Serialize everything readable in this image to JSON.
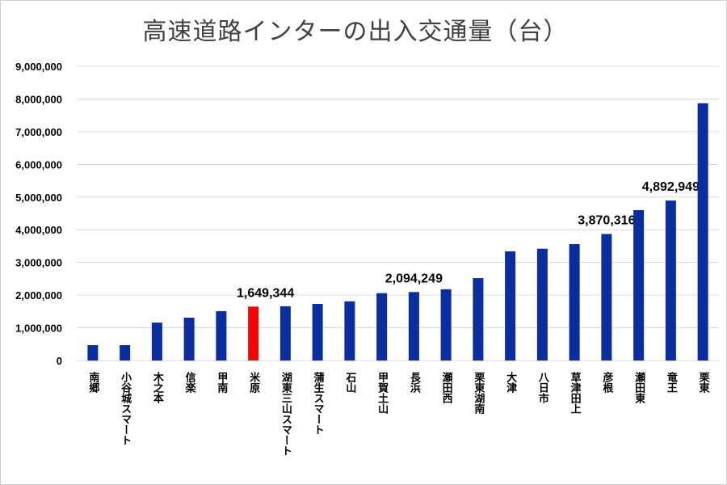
{
  "chart_data": {
    "type": "bar",
    "title": "高速道路インターの出入交通量（台）",
    "xlabel": "",
    "ylabel": "",
    "ylim": [
      0,
      9000000
    ],
    "yticks": [
      "0",
      "1,000,000",
      "2,000,000",
      "3,000,000",
      "4,000,000",
      "5,000,000",
      "6,000,000",
      "7,000,000",
      "8,000,000",
      "9,000,000"
    ],
    "grid": true,
    "legend": "none",
    "categories": [
      "南郷",
      "小谷城スマート",
      "木之本",
      "信楽",
      "甲南",
      "米原",
      "湖東三山スマート",
      "蒲生スマート",
      "石山",
      "甲賀土山",
      "長浜",
      "瀬田西",
      "栗東湖南",
      "大津",
      "八日市",
      "草津田上",
      "彦根",
      "瀬田東",
      "竜王",
      "栗東"
    ],
    "values": [
      470000,
      470000,
      1160000,
      1310000,
      1510000,
      1649344,
      1660000,
      1730000,
      1810000,
      2060000,
      2094249,
      2180000,
      2520000,
      3340000,
      3420000,
      3560000,
      3870316,
      4600000,
      4892949,
      7870000
    ],
    "data_labels": {
      "5": "1,649,344",
      "10": "2,094,249",
      "16": "3,870,316",
      "18": "4,892,949"
    },
    "colors": {
      "default": "#0a2ea0",
      "highlight": "#ff0000",
      "grid": "#d9d9d9"
    },
    "highlight_index": 5
  }
}
